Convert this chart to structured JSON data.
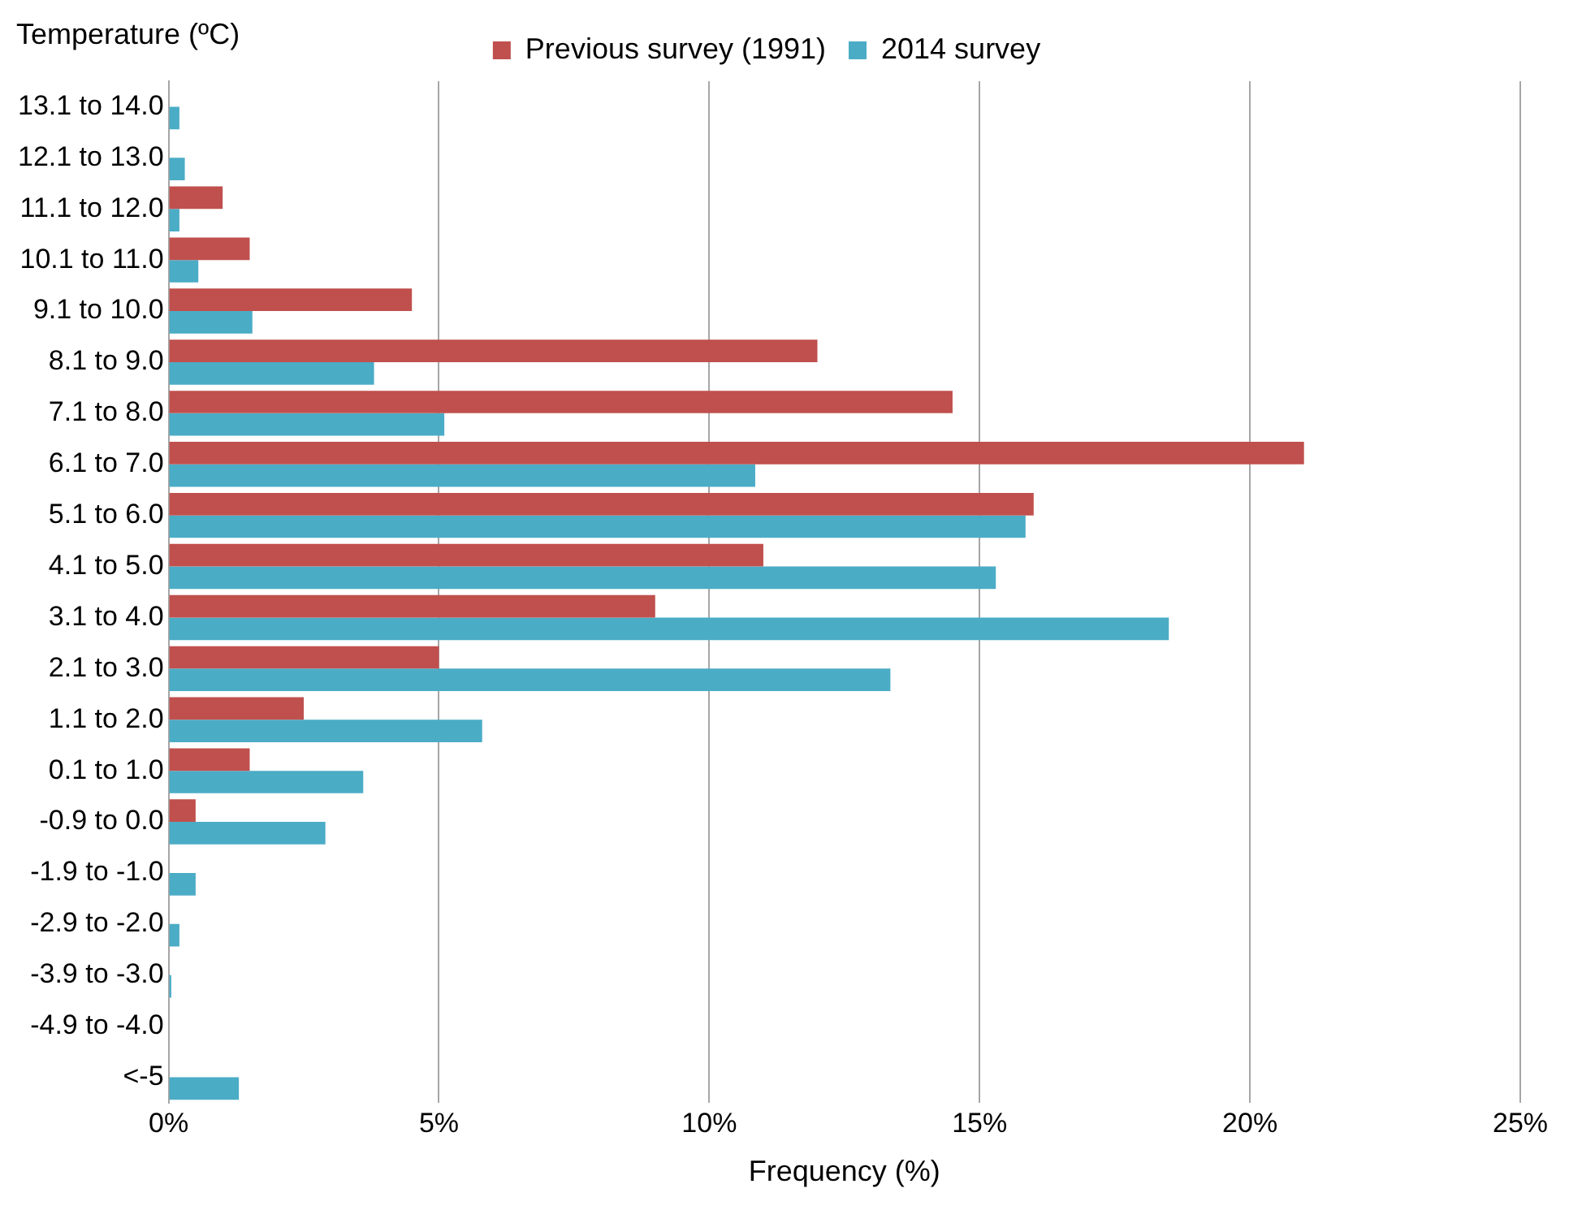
{
  "chart_data": {
    "type": "bar",
    "orientation": "horizontal",
    "ylabel": "Temperature (ºC)",
    "xlabel": "Frequency (%)",
    "categories": [
      "13.1 to 14.0",
      "12.1 to 13.0",
      "11.1 to 12.0",
      "10.1 to 11.0",
      "9.1 to 10.0",
      "8.1 to 9.0",
      "7.1 to 8.0",
      "6.1 to 7.0",
      "5.1 to 6.0",
      "4.1 to 5.0",
      "3.1 to 4.0",
      "2.1 to 3.0",
      "1.1 to 2.0",
      "0.1 to 1.0",
      "-0.9 to 0.0",
      "-1.9 to -1.0",
      "-2.9 to -2.0",
      "-3.9 to -3.0",
      "-4.9 to -4.0",
      "<-5"
    ],
    "series": [
      {
        "name": "Previous survey (1991)",
        "color": "#c0504d",
        "values": [
          0,
          0,
          1.0,
          1.5,
          4.5,
          12.0,
          14.5,
          21.0,
          16.0,
          11.0,
          9.0,
          5.0,
          2.5,
          1.5,
          0.5,
          0,
          0,
          0,
          0,
          0
        ]
      },
      {
        "name": "2014 survey",
        "color": "#4bacc6",
        "values": [
          0.2,
          0.3,
          0.2,
          0.55,
          1.55,
          3.8,
          5.1,
          10.85,
          15.85,
          15.3,
          18.5,
          13.35,
          5.8,
          3.6,
          2.9,
          0.5,
          0.2,
          0.05,
          0,
          1.3
        ]
      }
    ],
    "xlim": [
      0,
      25
    ],
    "xticks": [
      {
        "value": 0,
        "label": "0%"
      },
      {
        "value": 5,
        "label": "5%"
      },
      {
        "value": 10,
        "label": "10%"
      },
      {
        "value": 15,
        "label": "15%"
      },
      {
        "value": 20,
        "label": "20%"
      },
      {
        "value": 25,
        "label": "25%"
      }
    ],
    "grid": "x",
    "legend": "top"
  }
}
